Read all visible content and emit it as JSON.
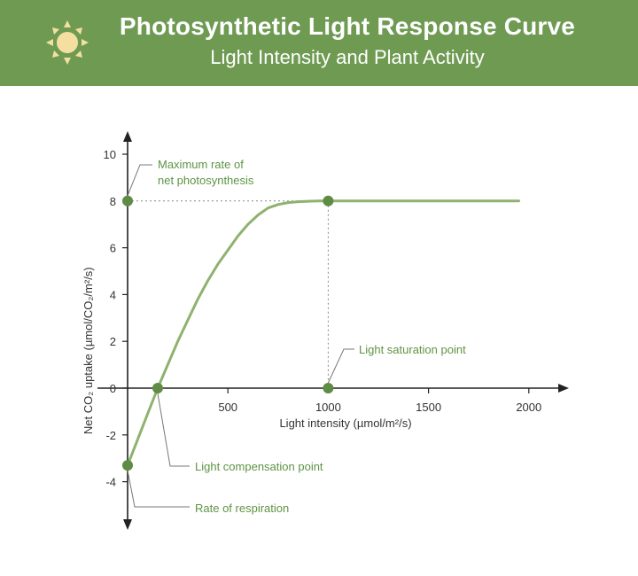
{
  "header": {
    "title": "Photosynthetic Light Response Curve",
    "subtitle": "Light Intensity and Plant Activity",
    "icon": "sun-icon"
  },
  "colors": {
    "header_bg": "#6e9a52",
    "curve": "#8fb26e",
    "point": "#5f8c45",
    "annotation_text": "#5e9443",
    "axis": "#222222"
  },
  "chart_data": {
    "type": "line",
    "xlabel": "Light intensity (µmol/m²/s)",
    "ylabel": "Net CO₂ uptake (µmol/CO₂/m²/s)",
    "xlim": [
      0,
      2150
    ],
    "ylim": [
      -6,
      11
    ],
    "x_ticks": [
      500,
      1000,
      1500,
      2000
    ],
    "y_ticks": [
      10,
      8,
      6,
      4,
      2,
      0,
      -2,
      -4
    ],
    "grid": false,
    "series": [
      {
        "x": [
          0,
          50,
          100,
          150,
          200,
          250,
          300,
          350,
          400,
          450,
          500,
          550,
          600,
          650,
          700,
          750,
          800,
          850,
          900,
          950,
          1000,
          1100,
          1200,
          1400,
          1600,
          1800,
          1950
        ],
        "y": [
          -3.3,
          -2.2,
          -1.1,
          0.0,
          1.0,
          2.0,
          2.9,
          3.8,
          4.6,
          5.3,
          5.9,
          6.5,
          7.0,
          7.4,
          7.7,
          7.85,
          7.93,
          7.97,
          7.99,
          8.0,
          8.0,
          8.0,
          8.0,
          8.0,
          8.0,
          8.0,
          8.0
        ]
      }
    ],
    "points": [
      {
        "name": "max-rate",
        "x": 0,
        "y": 8
      },
      {
        "name": "saturation-peak",
        "x": 1000,
        "y": 8
      },
      {
        "name": "saturation-axis",
        "x": 1000,
        "y": 0
      },
      {
        "name": "compensation",
        "x": 150,
        "y": 0
      },
      {
        "name": "respiration",
        "x": 0,
        "y": -3.3
      }
    ],
    "annotations": [
      {
        "name": "max-rate",
        "text": [
          "Maximum rate of",
          "net photosynthesis"
        ]
      },
      {
        "name": "saturation",
        "text": [
          "Light saturation point"
        ]
      },
      {
        "name": "compensation",
        "text": [
          "Light compensation point"
        ]
      },
      {
        "name": "respiration",
        "text": [
          "Rate of respiration"
        ]
      }
    ]
  }
}
